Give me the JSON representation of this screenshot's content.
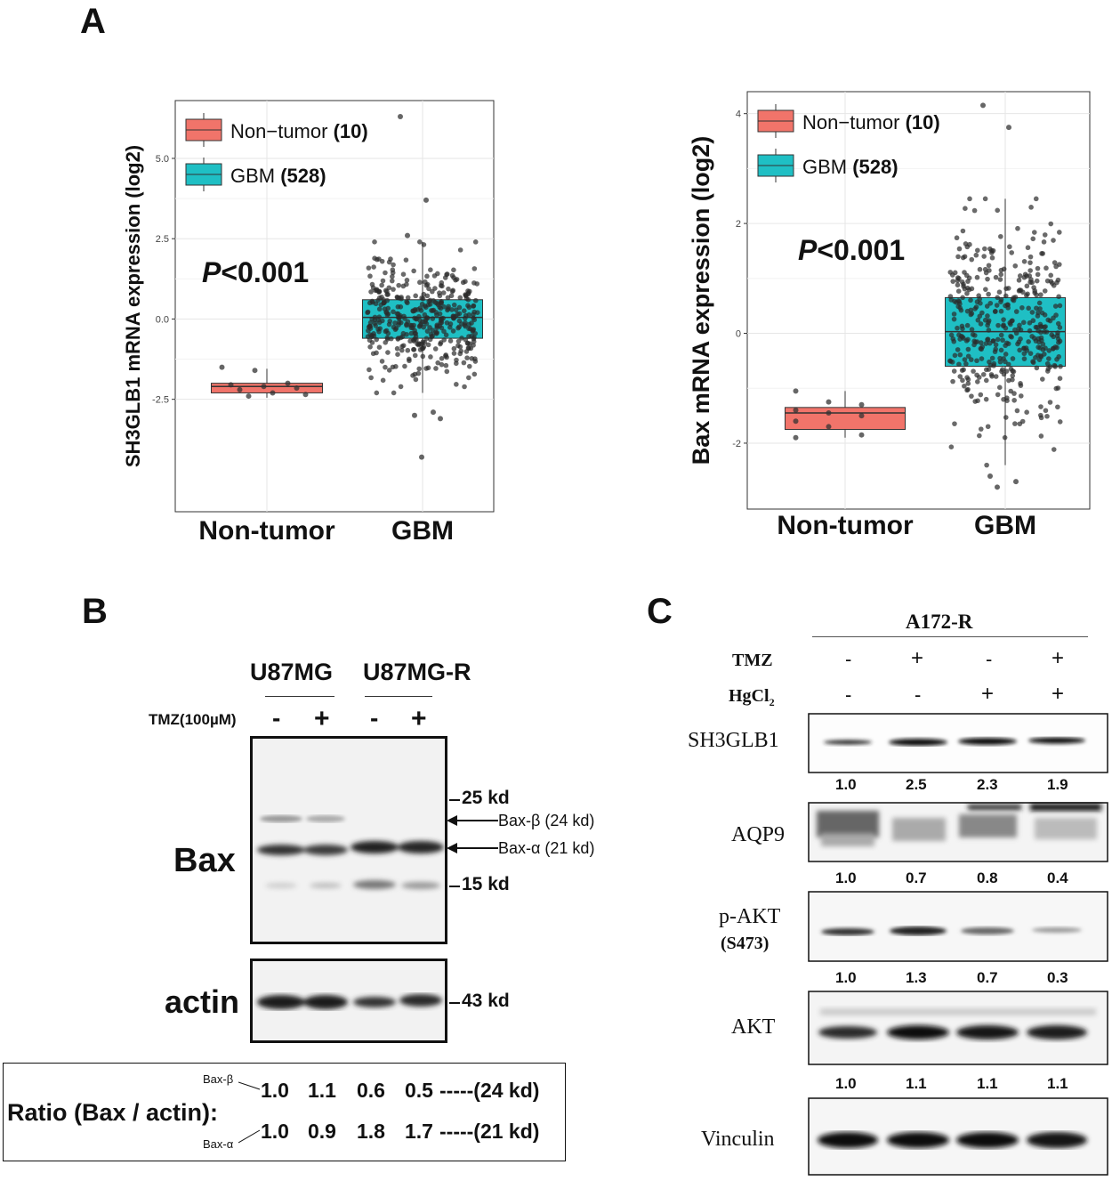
{
  "panels": {
    "A": "A",
    "B": "B",
    "C": "C"
  },
  "chart_data": [
    {
      "type": "box",
      "ylabel": "SH3GLB1 mRNA expression (log2)",
      "categories": [
        "Non-tumor",
        "GBM"
      ],
      "ylim": [
        -6.0,
        6.8
      ],
      "yticks": [
        -2.5,
        0.0,
        2.5,
        5.0
      ],
      "ytick_labels": [
        "-2.5",
        "0.0",
        "2.5",
        "5.0"
      ],
      "annotation": "P<0.001",
      "legend": [
        {
          "label": "Non−tumor",
          "n": "(10)",
          "color": "#F1746A"
        },
        {
          "label": "GBM",
          "n": "(528)",
          "color": "#1FBFC4"
        }
      ],
      "legend_position": "top-left",
      "grid": true,
      "boxes": [
        {
          "category": "Non-tumor",
          "color": "#F1746A",
          "q1": -2.3,
          "median": -2.1,
          "q3": -2.0,
          "whisker_low": -2.45,
          "whisker_high": -1.55,
          "points": [
            -1.5,
            -1.6,
            -2.0,
            -2.05,
            -2.1,
            -2.15,
            -2.2,
            -2.3,
            -2.35,
            -2.4
          ]
        },
        {
          "category": "GBM",
          "color": "#1FBFC4",
          "q1": -0.6,
          "median": 0.05,
          "q3": 0.6,
          "whisker_low": -2.3,
          "whisker_high": 2.4,
          "outliers": [
            6.3,
            3.7,
            2.6,
            -2.9,
            -3.0,
            -3.1,
            -4.3
          ]
        }
      ]
    },
    {
      "type": "box",
      "ylabel": "Bax mRNA expression (log2)",
      "categories": [
        "Non-tumor",
        "GBM"
      ],
      "ylim": [
        -3.2,
        4.4
      ],
      "yticks": [
        -2,
        0,
        2,
        4
      ],
      "ytick_labels": [
        "-2",
        "0",
        "2",
        "4"
      ],
      "annotation": "P<0.001",
      "legend": [
        {
          "label": "Non−tumor",
          "n": "(10)",
          "color": "#F1746A"
        },
        {
          "label": "GBM",
          "n": "(528)",
          "color": "#1FBFC4"
        }
      ],
      "legend_position": "top-left",
      "grid": true,
      "boxes": [
        {
          "category": "Non-tumor",
          "color": "#F1746A",
          "q1": -1.75,
          "median": -1.45,
          "q3": -1.35,
          "whisker_low": -1.9,
          "whisker_high": -1.05,
          "points": [
            -1.05,
            -1.25,
            -1.3,
            -1.4,
            -1.45,
            -1.5,
            -1.6,
            -1.7,
            -1.85,
            -1.9
          ]
        },
        {
          "category": "GBM",
          "color": "#1FBFC4",
          "q1": -0.6,
          "median": 0.03,
          "q3": 0.65,
          "whisker_low": -2.4,
          "whisker_high": 2.45,
          "outliers": [
            4.15,
            3.75,
            -2.6,
            -2.7,
            -2.8
          ]
        }
      ]
    }
  ],
  "blotB": {
    "groups": [
      "U87MG",
      "U87MG-R"
    ],
    "treatment_label": "TMZ(100µM)",
    "signs": [
      "-",
      "+",
      "-",
      "+"
    ],
    "bax_label": "Bax",
    "actin_label": "actin",
    "markers": [
      "25 kd",
      "15 kd",
      "43 kd"
    ],
    "arrows": [
      "Bax-β (24 kd)",
      "Bax-α (21 kd)"
    ],
    "ratio_title": "Ratio (Bax / actin):",
    "ratio_rows": [
      {
        "label": "Bax-β",
        "values": [
          "1.0",
          "1.1",
          "0.6",
          "0.5"
        ],
        "suffix": "-----(24 kd)"
      },
      {
        "label": "Bax-α",
        "values": [
          "1.0",
          "0.9",
          "1.8",
          "1.7"
        ],
        "suffix": "-----(21 kd)"
      }
    ]
  },
  "blotC": {
    "cell_line": "A172-R",
    "rows": [
      {
        "label": "TMZ",
        "signs": [
          "-",
          "+",
          "-",
          "+"
        ]
      },
      {
        "label": "HgCl",
        "sub": "2",
        "signs": [
          "-",
          "-",
          "+",
          "+"
        ]
      }
    ],
    "blots": [
      {
        "label": "SH3GLB1",
        "values": [
          "1.0",
          "2.5",
          "2.3",
          "1.9"
        ]
      },
      {
        "label": "AQP9",
        "values": [
          "1.0",
          "0.7",
          "0.8",
          "0.4"
        ]
      },
      {
        "label": "p-AKT",
        "sublabel": "(S473)",
        "values": [
          "1.0",
          "1.3",
          "0.7",
          "0.3"
        ]
      },
      {
        "label": "AKT",
        "values": [
          "1.0",
          "1.1",
          "1.1",
          "1.1"
        ]
      },
      {
        "label": "Vinculin"
      }
    ]
  }
}
